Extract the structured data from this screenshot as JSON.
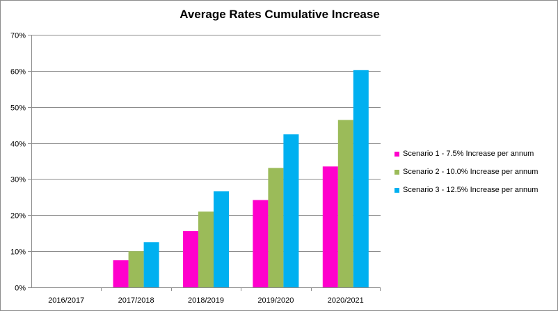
{
  "chart_data": {
    "type": "bar",
    "title": "Average Rates Cumulative Increase",
    "categories": [
      "2016/2017",
      "2017/2018",
      "2018/2019",
      "2019/2020",
      "2020/2021"
    ],
    "series": [
      {
        "name": "Scenario 1 - 7.5% Increase per annum",
        "color": "#FF00CC",
        "values": [
          0,
          7.5,
          15.6,
          24.2,
          33.5
        ]
      },
      {
        "name": "Scenario 2 - 10.0% Increase per annum",
        "color": "#9BBB59",
        "values": [
          0,
          10.0,
          21.0,
          33.1,
          46.4
        ]
      },
      {
        "name": "Scenario 3 - 12.5% Increase per annum",
        "color": "#00B0F0",
        "values": [
          0,
          12.5,
          26.6,
          42.4,
          60.2
        ]
      }
    ],
    "xlabel": "",
    "ylabel": "",
    "ylim": [
      0,
      70
    ],
    "yticks": [
      "0%",
      "10%",
      "20%",
      "30%",
      "40%",
      "50%",
      "60%",
      "70%"
    ],
    "grid": true,
    "legend_position": "right"
  }
}
